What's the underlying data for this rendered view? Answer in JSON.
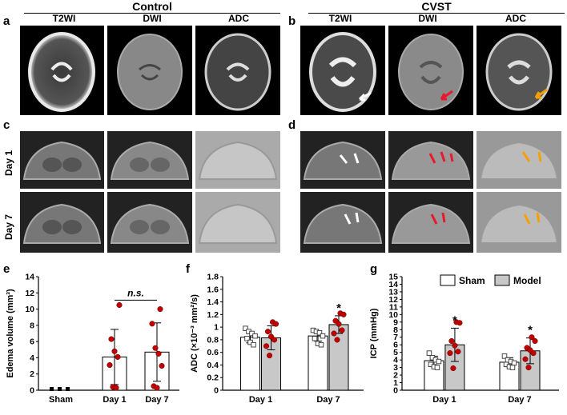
{
  "groups": {
    "control": "Control",
    "cvst": "CVST"
  },
  "panel_letters": {
    "a": "a",
    "b": "b",
    "c": "c",
    "d": "d",
    "e": "e",
    "f": "f",
    "g": "g"
  },
  "columns": {
    "t2wi": "T2WI",
    "dwi": "DWI",
    "adc": "ADC"
  },
  "rows": {
    "day1": "Day 1",
    "day7": "Day 7"
  },
  "colors": {
    "red_arrow": "#e8192c",
    "orange_arrow": "#f5a000",
    "white_arrow": "#ffffff",
    "dot": "#c00000",
    "model_fill": "#c8c8c8"
  },
  "chart_data": [
    {
      "panel": "e",
      "type": "bar",
      "ylabel": "Edema volume (mm³)",
      "ylim": [
        0,
        14
      ],
      "yticks": [
        0,
        2,
        4,
        6,
        8,
        10,
        12,
        14
      ],
      "categories": [
        "Sham",
        "Day 1",
        "Day 7"
      ],
      "values": [
        0.1,
        4.1,
        4.7
      ],
      "errors": [
        0,
        3.4,
        3.6
      ],
      "points": [
        [
          0,
          0,
          0
        ],
        [
          10.5,
          6.3,
          4.8,
          4.1,
          3.1,
          0.4,
          0.3
        ],
        [
          10.0,
          8.2,
          5.2,
          4.5,
          3.0,
          0.5,
          0.3
        ]
      ],
      "annotation": "n.s."
    },
    {
      "panel": "f",
      "type": "bar",
      "ylabel": "ADC (×10⁻³ mm²/s)",
      "ylim": [
        0,
        1.8
      ],
      "yticks": [
        0,
        0.2,
        0.4,
        0.6,
        0.8,
        1.0,
        1.2,
        1.4,
        1.6,
        1.8
      ],
      "categories": [
        "Day 1",
        "Day 7"
      ],
      "series": [
        {
          "name": "Sham",
          "values": [
            0.84,
            0.86
          ],
          "errors": [
            0.09,
            0.08
          ],
          "points": [
            [
              0.98,
              0.93,
              0.9,
              0.86,
              0.82,
              0.76,
              0.72
            ],
            [
              0.95,
              0.93,
              0.91,
              0.86,
              0.82,
              0.74,
              0.72
            ]
          ]
        },
        {
          "name": "Model",
          "values": [
            0.83,
            1.04
          ],
          "errors": [
            0.19,
            0.14
          ],
          "points": [
            [
              1.08,
              1.05,
              0.93,
              0.85,
              0.8,
              0.7,
              0.55
            ],
            [
              1.22,
              1.2,
              1.1,
              1.05,
              0.95,
              0.9,
              0.8
            ]
          ]
        }
      ],
      "annotations": [
        "",
        "*"
      ]
    },
    {
      "panel": "g",
      "type": "bar",
      "ylabel": "ICP (mmHg)",
      "ylim": [
        0,
        15
      ],
      "yticks": [
        0,
        1,
        2,
        3,
        4,
        5,
        6,
        7,
        8,
        9,
        10,
        11,
        12,
        13,
        14,
        15
      ],
      "categories": [
        "Day 1",
        "Day 7"
      ],
      "series": [
        {
          "name": "Sham",
          "values": [
            3.9,
            3.7
          ],
          "errors": [
            0.6,
            0.6
          ],
          "points": [
            [
              4.9,
              4.3,
              4.0,
              3.8,
              3.4,
              3.1,
              3.0
            ],
            [
              4.5,
              4.0,
              3.8,
              3.6,
              3.4,
              3.1,
              3.0
            ]
          ]
        },
        {
          "name": "Model",
          "values": [
            6.0,
            5.2
          ],
          "errors": [
            2.2,
            1.7
          ],
          "points": [
            [
              9.0,
              8.9,
              6.5,
              5.9,
              5.1,
              4.9,
              2.9
            ],
            [
              7.0,
              6.5,
              5.6,
              5.3,
              4.9,
              4.1,
              3.0
            ]
          ]
        }
      ],
      "annotations": [
        "*",
        "*"
      ],
      "legend": [
        "Sham",
        "Model"
      ]
    }
  ]
}
